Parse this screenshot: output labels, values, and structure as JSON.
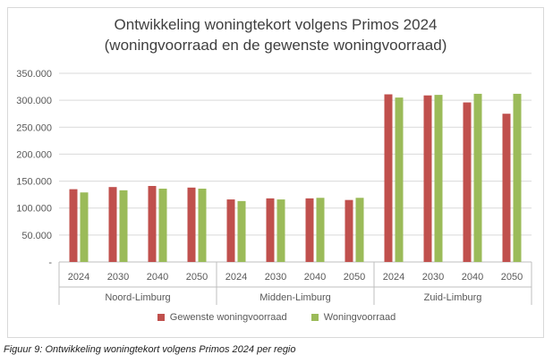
{
  "chart_data": {
    "type": "bar",
    "title": "Ontwikkeling woningtekort volgens Primos 2024",
    "subtitle": "(woningvoorraad en de gewenste woningvoorraad)",
    "xlabel": "",
    "ylabel": "",
    "ylim": [
      0,
      350000
    ],
    "yticks": [
      "-",
      "50.000",
      "100.000",
      "150.000",
      "200.000",
      "250.000",
      "300.000",
      "350.000"
    ],
    "grid": true,
    "legend_position": "bottom",
    "groups": [
      {
        "name": "Noord-Limburg",
        "categories": [
          "2024",
          "2030",
          "2040",
          "2050"
        ]
      },
      {
        "name": "Midden-Limburg",
        "categories": [
          "2024",
          "2030",
          "2040",
          "2050"
        ]
      },
      {
        "name": "Zuid-Limburg",
        "categories": [
          "2024",
          "2030",
          "2040",
          "2050"
        ]
      }
    ],
    "series": [
      {
        "name": "Gewenste woningvoorraad",
        "color": "#c0504d",
        "values": [
          135000,
          139000,
          141000,
          138000,
          116000,
          118000,
          118000,
          115000,
          311000,
          309000,
          296000,
          275000
        ]
      },
      {
        "name": "Woningvoorraad",
        "color": "#9bbb59",
        "values": [
          129000,
          133000,
          136000,
          136000,
          113000,
          116000,
          119000,
          119000,
          305000,
          310000,
          312000,
          312000
        ]
      }
    ]
  },
  "caption": "Figuur 9: Ontwikkeling woningtekort volgens Primos 2024 per regio"
}
